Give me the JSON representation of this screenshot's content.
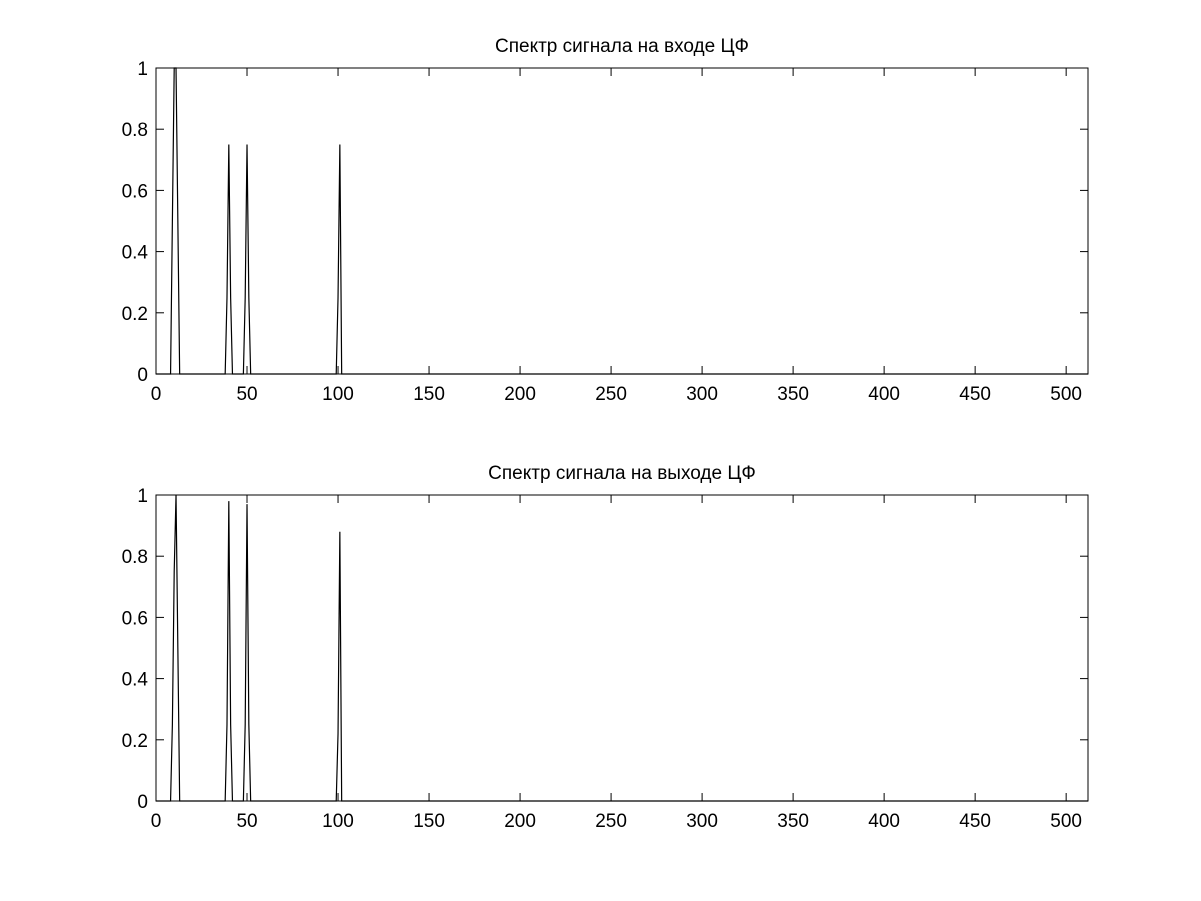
{
  "figure": {
    "background": "#ffffff",
    "line_color": "#000000"
  },
  "chart_data": [
    {
      "type": "line",
      "title": "Спектр сигнала на входе ЦФ",
      "xlabel": "",
      "ylabel": "",
      "xlim": [
        0,
        512
      ],
      "ylim": [
        0,
        1
      ],
      "xticks": [
        0,
        50,
        100,
        150,
        200,
        250,
        300,
        350,
        400,
        450,
        500
      ],
      "xtick_labels": [
        "0",
        "50",
        "100",
        "150",
        "200",
        "250",
        "300",
        "350",
        "400",
        "450",
        "500"
      ],
      "yticks": [
        0,
        0.2,
        0.4,
        0.6,
        0.8,
        1
      ],
      "ytick_labels": [
        "0",
        "0.2",
        "0.4",
        "0.6",
        "0.8",
        "1"
      ],
      "grid": false,
      "series": [
        {
          "x": [
            0,
            8,
            9,
            10,
            11,
            12,
            13,
            38,
            39,
            40,
            41,
            42,
            48,
            49,
            50,
            51,
            52,
            99,
            100,
            101,
            102,
            512
          ],
          "y": [
            0,
            0,
            0.5,
            1,
            1,
            0.5,
            0,
            0,
            0.25,
            0.75,
            0.25,
            0,
            0,
            0.25,
            0.75,
            0.25,
            0,
            0,
            0.25,
            0.75,
            0,
            0
          ]
        }
      ]
    },
    {
      "type": "line",
      "title": "Спектр сигнала на выходе ЦФ",
      "xlabel": "",
      "ylabel": "",
      "xlim": [
        0,
        512
      ],
      "ylim": [
        0,
        1
      ],
      "xticks": [
        0,
        50,
        100,
        150,
        200,
        250,
        300,
        350,
        400,
        450,
        500
      ],
      "xtick_labels": [
        "0",
        "50",
        "100",
        "150",
        "200",
        "250",
        "300",
        "350",
        "400",
        "450",
        "500"
      ],
      "yticks": [
        0,
        0.2,
        0.4,
        0.6,
        0.8,
        1
      ],
      "ytick_labels": [
        "0",
        "0.2",
        "0.4",
        "0.6",
        "0.8",
        "1"
      ],
      "grid": false,
      "series": [
        {
          "x": [
            0,
            8,
            9,
            10,
            11,
            12,
            13,
            38,
            39,
            40,
            41,
            42,
            48,
            49,
            50,
            51,
            52,
            99,
            100,
            101,
            102,
            512
          ],
          "y": [
            0,
            0,
            0.25,
            0.75,
            1,
            0.5,
            0,
            0,
            0.25,
            0.98,
            0.25,
            0,
            0,
            0.25,
            0.97,
            0.25,
            0,
            0,
            0.22,
            0.88,
            0,
            0
          ]
        }
      ]
    }
  ]
}
